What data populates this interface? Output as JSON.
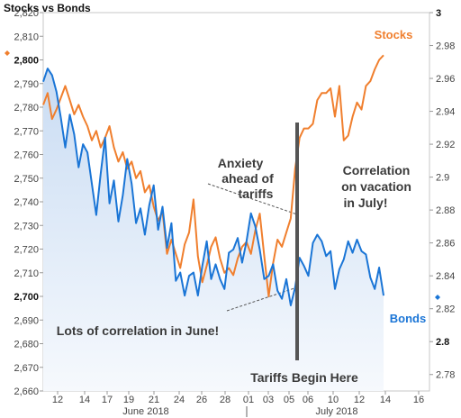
{
  "chart_data": {
    "type": "line",
    "title": "Stocks vs Bonds",
    "x_tick_labels": [
      "12",
      "14",
      "17",
      "19",
      "21",
      "24",
      "26",
      "28",
      "01",
      "03",
      "05",
      "06",
      "10",
      "12",
      "14",
      "16"
    ],
    "month_labels": [
      "June 2018",
      "July 2018"
    ],
    "y_left": {
      "min": 2660,
      "max": 2820,
      "ticks": [
        "2,660",
        "2,670",
        "2,680",
        "2,690",
        "2,700",
        "2,710",
        "2,720",
        "2,730",
        "2,740",
        "2,750",
        "2,760",
        "2,770",
        "2,780",
        "2,790",
        "2,800",
        "2,810",
        "2,820"
      ],
      "bold_ticks": [
        "2,700",
        "2,800"
      ]
    },
    "y_right": {
      "min": 2.77,
      "max": 3.0,
      "ticks": [
        "2.78",
        "2.8",
        "2.82",
        "2.84",
        "2.86",
        "2.88",
        "2.9",
        "2.92",
        "2.94",
        "2.96",
        "2.98",
        "3"
      ],
      "bold_ticks": [
        "2.8",
        "3"
      ]
    },
    "grid": false,
    "series": [
      {
        "name": "Stocks",
        "axis": "left",
        "color": "#f07f2e",
        "x": [
          0,
          3,
          6,
          9,
          12,
          15,
          18,
          21,
          24,
          27,
          30,
          33,
          36,
          39,
          42,
          45,
          48,
          51,
          54,
          57,
          60,
          63,
          66,
          69,
          72,
          75,
          78,
          81,
          84,
          87,
          90,
          93,
          96,
          99,
          102,
          105,
          108,
          111,
          114,
          117,
          120,
          123,
          126,
          129,
          132,
          135,
          138,
          141,
          144,
          147,
          150,
          153,
          156,
          159,
          162,
          165,
          168,
          171,
          174,
          177,
          180,
          183,
          186,
          189,
          192,
          195,
          198,
          201,
          204,
          207,
          210,
          213,
          216,
          219,
          222,
          225,
          228,
          231
        ],
        "values": [
          2781,
          2786,
          2775,
          2779,
          2784,
          2789,
          2783,
          2777,
          2781,
          2776,
          2772,
          2766,
          2770,
          2763,
          2767,
          2772,
          2763,
          2757,
          2761,
          2754,
          2757,
          2750,
          2753,
          2744,
          2747,
          2738,
          2732,
          2736,
          2718,
          2724,
          2718,
          2712,
          2722,
          2727,
          2741,
          2717,
          2706,
          2713,
          2721,
          2725,
          2716,
          2710,
          2712,
          2709,
          2716,
          2721,
          2723,
          2718,
          2728,
          2735,
          2717,
          2700,
          2714,
          2724,
          2721,
          2727,
          2733,
          2754,
          2767,
          2771,
          2771,
          2773,
          2783,
          2786,
          2786,
          2788,
          2776,
          2789,
          2766,
          2768,
          2776,
          2782,
          2779,
          2789,
          2791,
          2796,
          2800,
          2802
        ]
      },
      {
        "name": "Bonds",
        "axis": "right",
        "color": "#1a75d6",
        "x": [
          0,
          3,
          6,
          9,
          12,
          15,
          18,
          21,
          24,
          27,
          30,
          33,
          36,
          39,
          42,
          45,
          48,
          51,
          54,
          57,
          60,
          63,
          66,
          69,
          72,
          75,
          78,
          81,
          84,
          87,
          90,
          93,
          96,
          99,
          102,
          105,
          108,
          111,
          114,
          117,
          120,
          123,
          126,
          129,
          132,
          135,
          138,
          141,
          144,
          147,
          150,
          153,
          156,
          159,
          162,
          165,
          168,
          171,
          174,
          177,
          180,
          183,
          186,
          189,
          192,
          195,
          198,
          201,
          204,
          207,
          210,
          213,
          216,
          219,
          222,
          225,
          228,
          231
        ],
        "values": [
          2.958,
          2.966,
          2.962,
          2.952,
          2.936,
          2.918,
          2.938,
          2.926,
          2.906,
          2.92,
          2.915,
          2.896,
          2.877,
          2.902,
          2.924,
          2.884,
          2.898,
          2.873,
          2.889,
          2.911,
          2.896,
          2.872,
          2.881,
          2.865,
          2.883,
          2.895,
          2.868,
          2.882,
          2.857,
          2.872,
          2.837,
          2.842,
          2.828,
          2.84,
          2.842,
          2.828,
          2.846,
          2.861,
          2.838,
          2.847,
          2.838,
          2.832,
          2.854,
          2.856,
          2.863,
          2.848,
          2.861,
          2.878,
          2.87,
          2.856,
          2.838,
          2.84,
          2.847,
          2.831,
          2.826,
          2.838,
          2.822,
          2.833,
          2.851,
          2.846,
          2.84,
          2.86,
          2.865,
          2.861,
          2.852,
          2.855,
          2.832,
          2.844,
          2.85,
          2.861,
          2.854,
          2.862,
          2.855,
          2.853,
          2.839,
          2.832,
          2.845,
          2.828
        ]
      }
    ],
    "annotations": [
      {
        "text": "Anxiety ahead of tariffs",
        "lines": [
          "Anxiety",
          "ahead of",
          "tariffs"
        ]
      },
      {
        "text": "Correlation on vacation in July!",
        "lines": [
          "Correlation",
          "on vacation",
          "in July!"
        ]
      },
      {
        "text": "Lots of correlation in June!",
        "lines": [
          "Lots of correlation in June!"
        ]
      },
      {
        "text": "Tariffs Begin Here",
        "lines": [
          "Tariffs Begin Here"
        ]
      }
    ],
    "legend": {
      "placement": "inline"
    }
  }
}
